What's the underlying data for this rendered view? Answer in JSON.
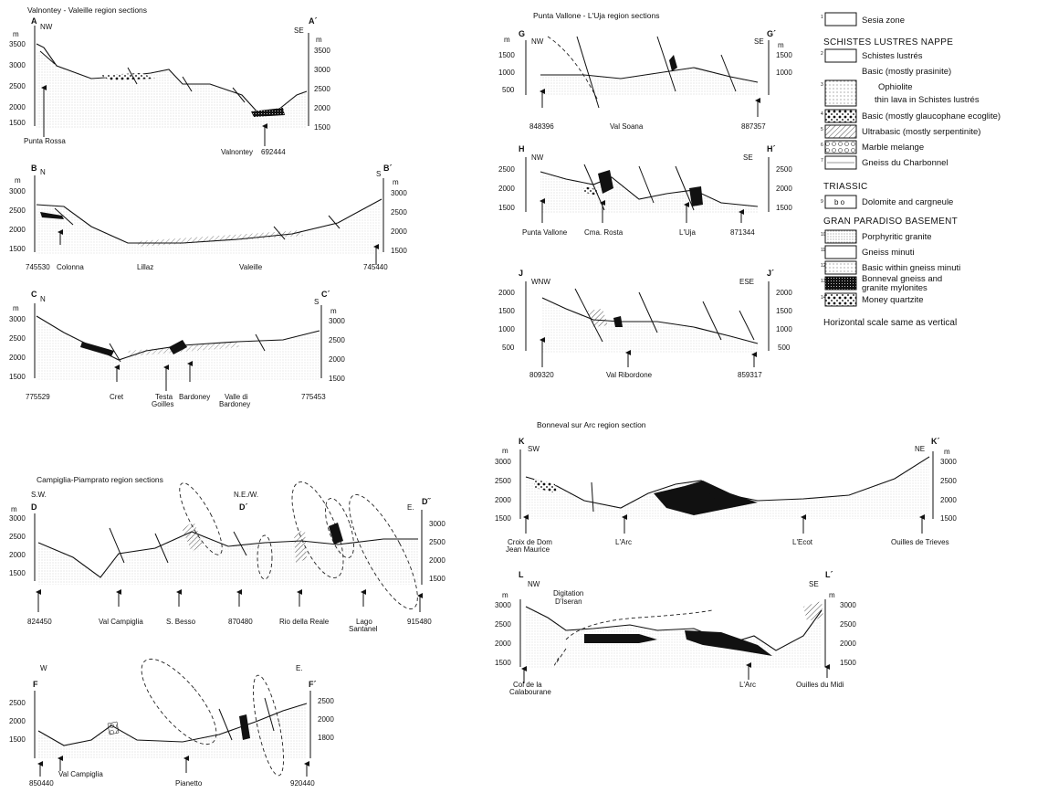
{
  "sections": {
    "valnontey": {
      "title": "Valnontey - Valeille region sections",
      "A": {
        "start": "A",
        "end": "A´",
        "dir_left": "NW",
        "dir_right": "SE",
        "unit": "m",
        "left_ticks": [
          "3500",
          "3000",
          "2500",
          "2000",
          "1500"
        ],
        "right_ticks": [
          "3500",
          "3000",
          "2500",
          "2000",
          "1500"
        ],
        "places": [
          "Punta Rossa",
          "Valnontey",
          "692444"
        ]
      },
      "B": {
        "start": "B",
        "end": "B´",
        "dir_left": "N",
        "dir_right": "S",
        "unit": "m",
        "left_ticks": [
          "3000",
          "2500",
          "2000",
          "1500"
        ],
        "right_ticks": [
          "3000",
          "2500",
          "2000",
          "1500"
        ],
        "places": [
          "745530",
          "Colonna",
          "Lillaz",
          "Valeille",
          "745440"
        ]
      },
      "C": {
        "start": "C",
        "end": "C´",
        "dir_left": "N",
        "dir_right": "S",
        "unit": "m",
        "left_ticks": [
          "3000",
          "2500",
          "2000",
          "1500"
        ],
        "right_ticks": [
          "3000",
          "2500",
          "2000",
          "1500"
        ],
        "places": [
          "775529",
          "Cret",
          "Testa",
          "Goilles",
          "Bardoney",
          "Valle di",
          "Bardoney",
          "775453"
        ]
      }
    },
    "punta": {
      "title": "Punta Vallone - L'Uja region sections",
      "G": {
        "start": "G",
        "end": "G´",
        "dir_left": "NW",
        "dir_right": "SE",
        "unit": "m",
        "left_ticks": [
          "1500",
          "1000",
          "500"
        ],
        "right_ticks": [
          "1500",
          "1000",
          "500"
        ],
        "places": [
          "848396",
          "Val Soana",
          "887357"
        ]
      },
      "H": {
        "start": "H",
        "end": "H´",
        "dir_left": "NW",
        "dir_right": "SE",
        "left_ticks": [
          "2500",
          "2000",
          "1500"
        ],
        "right_ticks": [
          "2500",
          "2000",
          "1500"
        ],
        "places": [
          "Punta Vallone",
          "Cma. Rosta",
          "L'Uja",
          "871344"
        ]
      },
      "J": {
        "start": "J",
        "end": "J´",
        "dir_left": "WNW",
        "dir_right": "ESE",
        "left_ticks": [
          "2000",
          "1500",
          "1000",
          "500"
        ],
        "right_ticks": [
          "2000",
          "1500",
          "1000",
          "500"
        ],
        "places": [
          "809320",
          "Val Ribordone",
          "859317"
        ]
      }
    },
    "campiglia": {
      "title": "Campiglia-Piamprato region sections",
      "D": {
        "start": "D",
        "mid": "D´",
        "end": "D˝",
        "dir_left": "S.W.",
        "dir_mid": "N.E./W.",
        "dir_right": "E.",
        "unit": "m",
        "left_ticks": [
          "3000",
          "2500",
          "2000",
          "1500"
        ],
        "right_ticks": [
          "3000",
          "2500",
          "2000",
          "1500"
        ],
        "places": [
          "824450",
          "Val Campiglia",
          "S. Besso",
          "870480",
          "Rio della Reale",
          "Lago",
          "Santanel",
          "915480"
        ]
      },
      "F": {
        "start": "F",
        "end": "F´",
        "dir_left": "W",
        "dir_right": "E.",
        "left_ticks": [
          "2500",
          "2000",
          "1500"
        ],
        "right_ticks": [
          "2500",
          "2000",
          "1800"
        ],
        "places": [
          "850440",
          "Val Campiglia",
          "Pianetto",
          "920440"
        ]
      }
    },
    "bonneval": {
      "title": "Bonneval sur Arc region section",
      "K": {
        "start": "K",
        "end": "K´",
        "dir_left": "SW",
        "dir_right": "NE",
        "unit": "m",
        "left_ticks": [
          "3000",
          "2500",
          "2000",
          "1500"
        ],
        "right_ticks": [
          "3000",
          "2500",
          "2000",
          "1500"
        ],
        "places": [
          "Croix de Dom",
          "Jean Maurice",
          "L'Arc",
          "L'Ecot",
          "Ouilles de Trieves"
        ]
      },
      "L": {
        "start": "L",
        "end": "L´",
        "dir_left": "NW",
        "dir_right": "SE",
        "unit": "m",
        "left_ticks": [
          "3000",
          "2500",
          "2000",
          "1500"
        ],
        "right_ticks": [
          "3000",
          "2500",
          "2000",
          "1500"
        ],
        "places": [
          "Digitation",
          "D'Iseran",
          "Col de la",
          "Calabourane",
          "L'Arc",
          "Ouilles du Midi"
        ]
      }
    }
  },
  "legend": {
    "items": [
      {
        "label": "Sesia zone",
        "num": "1"
      },
      {
        "heading": "SCHISTES LUSTRES NAPPE"
      },
      {
        "label": "Schistes lustrés",
        "num": "2"
      },
      {
        "label": "Basic  (mostly prasinite)"
      },
      {
        "label": "Ophiolite"
      },
      {
        "label": "thin lava in Schistes lustrés",
        "num": "3"
      },
      {
        "label": "Basic (mostly glaucophane ecoglite)",
        "num": "4"
      },
      {
        "label": "Ultrabasic (mostly serpentinite)",
        "num": "5"
      },
      {
        "label": "Marble melange",
        "num": "6"
      },
      {
        "label": "Gneiss du Charbonnel",
        "num": "7"
      },
      {
        "heading": "TRIASSIC"
      },
      {
        "label": "Dolomite and cargneule",
        "num": "9",
        "box": "b  o"
      },
      {
        "heading": "GRAN PARADISO BASEMENT"
      },
      {
        "label": "Porphyritic granite",
        "num": "10"
      },
      {
        "label": "Gneiss minuti",
        "num": "11"
      },
      {
        "label": "Basic within gneiss minuti",
        "num": "12"
      },
      {
        "label": "Bonneval gneiss and",
        "label2": "granite mylonites",
        "num": "13"
      },
      {
        "label": "Money quartzite",
        "num": "14"
      }
    ],
    "note": "Horizontal scale same as vertical"
  },
  "colors": {
    "ink": "#111111",
    "paper": "#ffffff"
  }
}
